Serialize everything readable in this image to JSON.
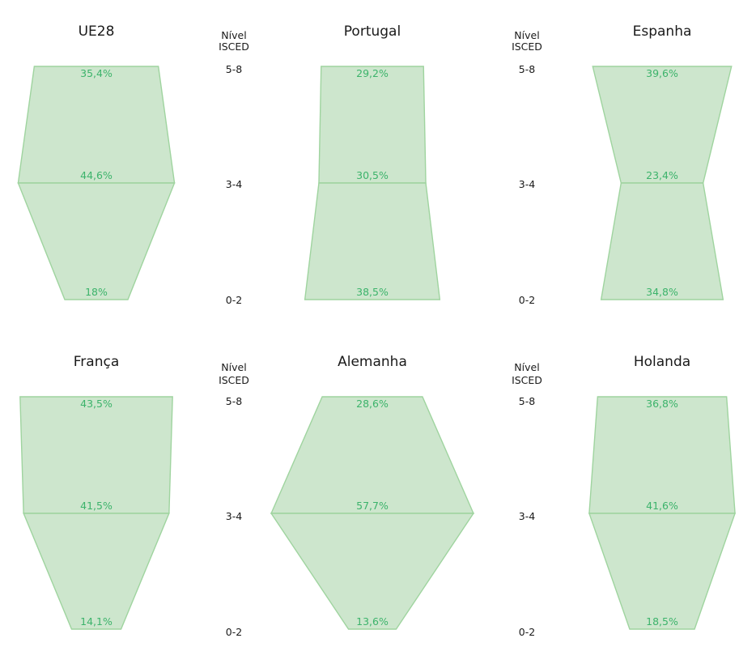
{
  "chart_data": {
    "type": "area",
    "levels": [
      "5-8",
      "3-4",
      "0-2"
    ],
    "level_axis_title": [
      "Nível",
      "ISCED"
    ],
    "colors": {
      "fill": "#cde6cd",
      "stroke": "#9fd49f",
      "label": "#3cb36b",
      "text": "#1a1a1a"
    },
    "panels": [
      {
        "title": "UE28",
        "values": [
          35.4,
          44.6,
          18.0
        ],
        "labels": [
          "35,4%",
          "44,6%",
          "18%"
        ]
      },
      {
        "title": "Portugal",
        "values": [
          29.2,
          30.5,
          38.5
        ],
        "labels": [
          "29,2%",
          "30,5%",
          "38,5%"
        ]
      },
      {
        "title": "Espanha",
        "values": [
          39.6,
          23.4,
          34.8
        ],
        "labels": [
          "39,6%",
          "23,4%",
          "34,8%"
        ]
      },
      {
        "title": "França",
        "values": [
          43.5,
          41.5,
          14.1
        ],
        "labels": [
          "43,5%",
          "41,5%",
          "14,1%"
        ]
      },
      {
        "title": "Alemanha",
        "values": [
          28.6,
          57.7,
          13.6
        ],
        "labels": [
          "28,6%",
          "57,7%",
          "13,6%"
        ]
      },
      {
        "title": "Holanda",
        "values": [
          36.8,
          41.6,
          18.5
        ],
        "labels": [
          "36,8%",
          "41,6%",
          "18,5%"
        ]
      }
    ]
  }
}
